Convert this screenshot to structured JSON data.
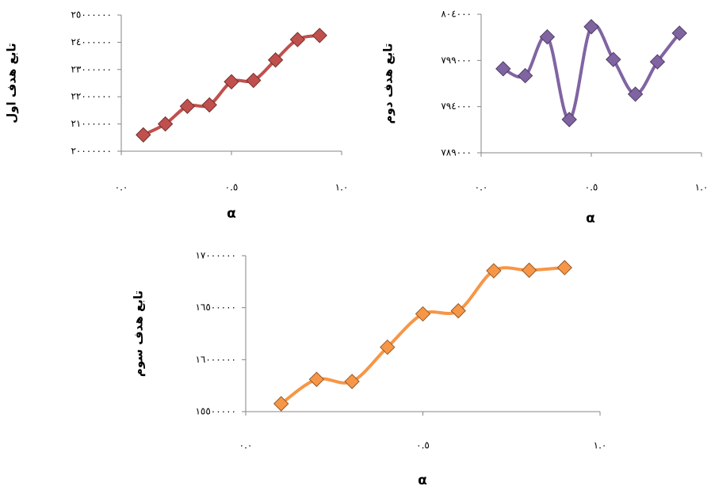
{
  "chart_data": [
    {
      "type": "line",
      "smooth": true,
      "marker": "diamond",
      "y_label": "تابع هدف اول",
      "x_label": "α",
      "x": [
        0.1,
        0.2,
        0.3,
        0.4,
        0.5,
        0.6,
        0.7,
        0.8,
        0.9
      ],
      "series": [
        {
          "color": "#c0504d",
          "values": [
            20600000,
            21000000,
            21650000,
            21700000,
            22550000,
            22600000,
            23350000,
            24100000,
            24250000
          ]
        }
      ],
      "xlim": [
        0,
        1
      ],
      "xticks": [
        {
          "value": 0,
          "label": "٠.٠"
        },
        {
          "value": 0.5,
          "label": "٠.٥"
        },
        {
          "value": 1,
          "label": "١.٠"
        }
      ],
      "ylim": [
        20000000,
        25000000
      ],
      "yticks": [
        {
          "value": 20000000,
          "label": "٢٠٠٠٠٠٠٠"
        },
        {
          "value": 21000000,
          "label": "٢١٠٠٠٠٠٠"
        },
        {
          "value": 22000000,
          "label": "٢٢٠٠٠٠٠٠"
        },
        {
          "value": 23000000,
          "label": "٢٣٠٠٠٠٠٠"
        },
        {
          "value": 24000000,
          "label": "٢٤٠٠٠٠٠٠"
        },
        {
          "value": 25000000,
          "label": "٢٥٠٠٠٠٠٠"
        }
      ]
    },
    {
      "type": "line",
      "smooth": true,
      "marker": "diamond",
      "y_label": "تابع هدف دوم",
      "x_label": "α",
      "x": [
        0.1,
        0.2,
        0.3,
        0.4,
        0.5,
        0.6,
        0.7,
        0.8,
        0.9
      ],
      "series": [
        {
          "color": "#8064a2",
          "values": [
            798100,
            797350,
            801550,
            792600,
            802650,
            799100,
            795350,
            798850,
            801950
          ]
        }
      ],
      "xlim": [
        0,
        1
      ],
      "xticks": [
        {
          "value": 0,
          "label": "٠.٠"
        },
        {
          "value": 0.5,
          "label": "٠.٥"
        },
        {
          "value": 1,
          "label": "١.٠"
        }
      ],
      "ylim": [
        789000,
        804000
      ],
      "yticks": [
        {
          "value": 789000,
          "label": "٧٨٩٠٠٠"
        },
        {
          "value": 794000,
          "label": "٧٩٤٠٠٠"
        },
        {
          "value": 799000,
          "label": "٧٩٩٠٠٠"
        },
        {
          "value": 804000,
          "label": "٨٠٤٠٠٠"
        }
      ]
    },
    {
      "type": "line",
      "smooth": true,
      "marker": "diamond",
      "y_label": "تابع هدف سوم",
      "x_label": "α",
      "x": [
        0.1,
        0.2,
        0.3,
        0.4,
        0.5,
        0.6,
        0.7,
        0.8,
        0.9
      ],
      "series": [
        {
          "color": "#f79646",
          "values": [
            15576000,
            15810000,
            15790000,
            16120000,
            16440000,
            16470000,
            16855000,
            16860000,
            16885000
          ]
        }
      ],
      "xlim": [
        0,
        1
      ],
      "xticks": [
        {
          "value": 0,
          "label": "٠.٠"
        },
        {
          "value": 0.5,
          "label": "٠.٥"
        },
        {
          "value": 1,
          "label": "١.٠"
        }
      ],
      "ylim": [
        15500000,
        17000000
      ],
      "yticks": [
        {
          "value": 15500000,
          "label": "١٥٥٠٠٠٠٠"
        },
        {
          "value": 16000000,
          "label": "١٦٠٠٠٠٠٠"
        },
        {
          "value": 16500000,
          "label": "١٦٥٠٠٠٠٠"
        },
        {
          "value": 17000000,
          "label": "١٧٠٠٠٠٠٠"
        }
      ]
    }
  ]
}
